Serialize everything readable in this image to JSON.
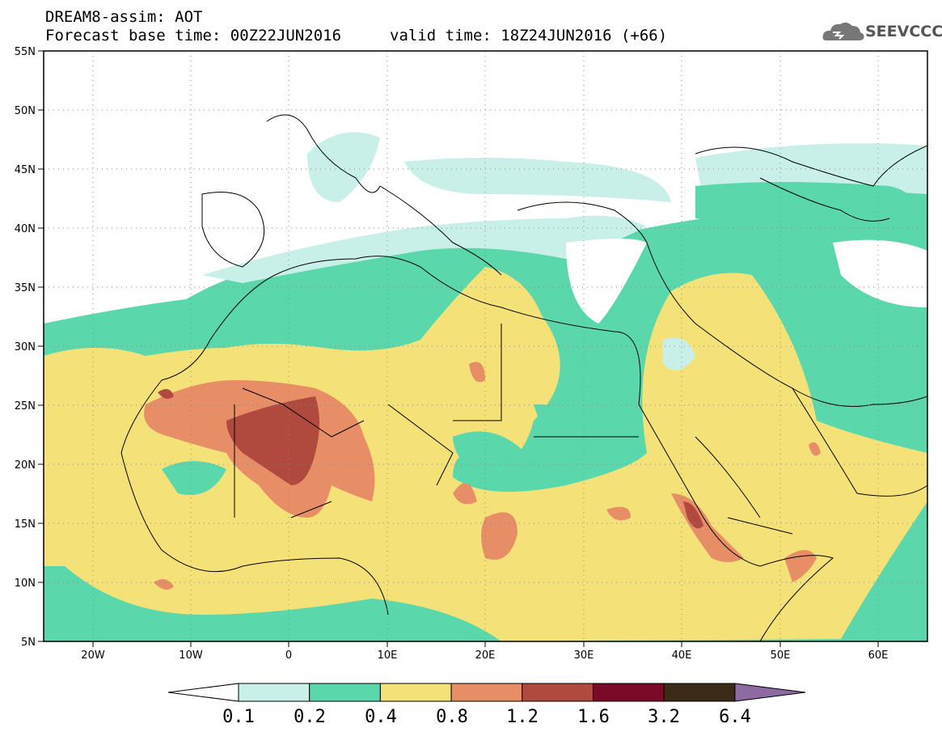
{
  "header": {
    "title": "DREAM8-assim: AOT",
    "base_time": "Forecast base time: 00Z22JUN2016",
    "valid_time": "valid time: 18Z24JUN2016 (+66)",
    "logo_text": "SEEVCCC"
  },
  "map": {
    "lon_range": [
      -25,
      65
    ],
    "lat_range": [
      5,
      55
    ],
    "lon_ticks": [
      "20W",
      "10W",
      "0",
      "10E",
      "20E",
      "30E",
      "40E",
      "50E",
      "60E"
    ],
    "lat_ticks": [
      "55N",
      "50N",
      "45N",
      "40N",
      "35N",
      "30N",
      "25N",
      "20N",
      "15N",
      "10N",
      "5N"
    ],
    "grid": "dotted"
  },
  "colorbar": {
    "labels": [
      "0.1",
      "0.2",
      "0.4",
      "0.8",
      "1.2",
      "1.6",
      "3.2",
      "6.4"
    ],
    "colors": [
      "#ffffff",
      "#c8f0e8",
      "#5ad8ac",
      "#f4e278",
      "#e88e66",
      "#b04a3e",
      "#7a0a28",
      "#3c2a18",
      "#8e6aa2"
    ]
  }
}
